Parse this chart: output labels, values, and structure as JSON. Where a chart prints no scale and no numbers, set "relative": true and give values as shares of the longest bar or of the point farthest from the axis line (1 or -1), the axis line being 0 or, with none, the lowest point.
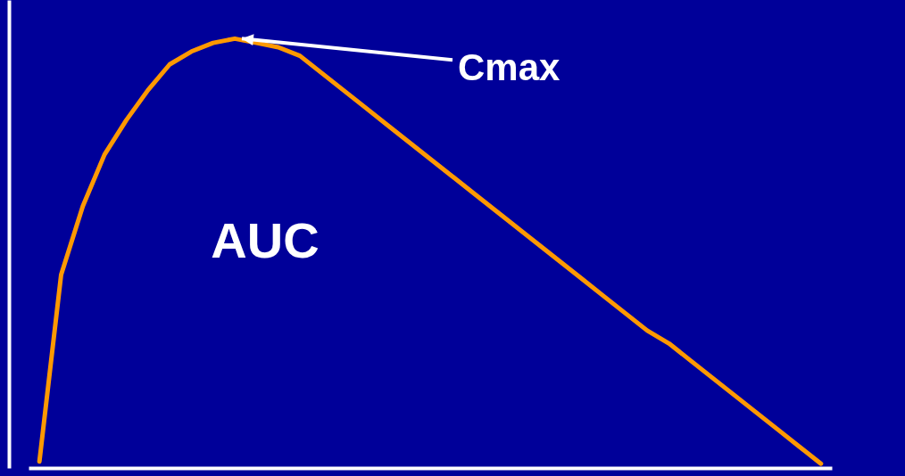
{
  "chart_data": {
    "type": "line",
    "relative": true,
    "categories": [
      null,
      null,
      null,
      null,
      null,
      null,
      null,
      null,
      null,
      null,
      null,
      null,
      null,
      null,
      null,
      null,
      null,
      null,
      null,
      null,
      null,
      null,
      null,
      null,
      null,
      null,
      null,
      null,
      null,
      null,
      null,
      null,
      null,
      null,
      null,
      null,
      null
    ],
    "series": [
      {
        "color": "#ff9900",
        "values": [
          0.015,
          0.45,
          0.61,
          0.73,
          0.81,
          0.88,
          0.94,
          0.97,
          0.99,
          1,
          0.99,
          0.98,
          0.96,
          0.92,
          0.88,
          0.84,
          0.8,
          0.76,
          0.72,
          0.68,
          0.64,
          0.6,
          0.56,
          0.52,
          0.48,
          0.44,
          0.4,
          0.36,
          0.32,
          0.29,
          0.25,
          0.21,
          0.17,
          0.13,
          0.09,
          0.05,
          0.01
        ]
      }
    ],
    "annotations": [
      "Cmax",
      "AUC"
    ],
    "grid": false,
    "tick_labels": false,
    "marker": "none",
    "line_style": "solid"
  }
}
